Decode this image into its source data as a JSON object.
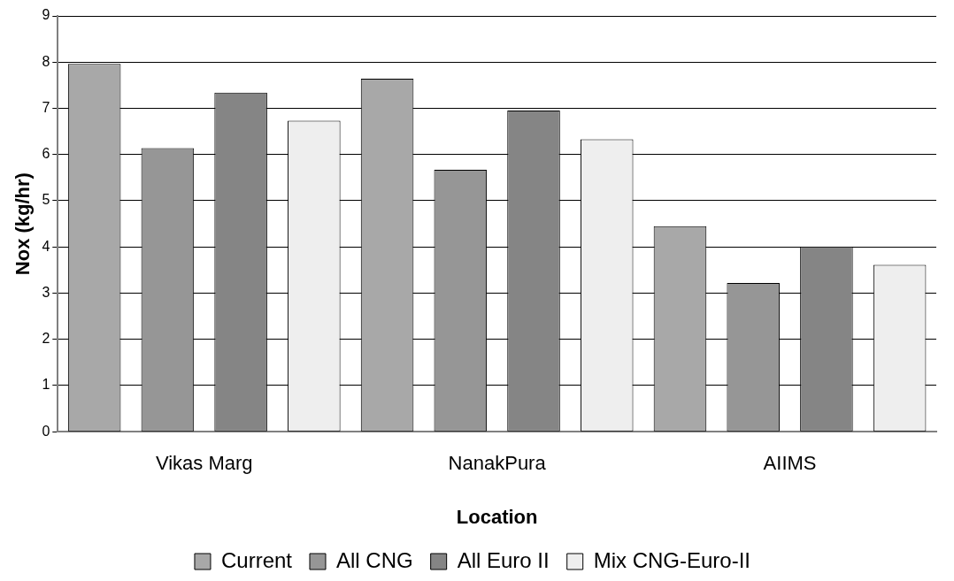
{
  "chart_data": {
    "type": "bar",
    "xlabel": "Location",
    "ylabel": "Nox (kg/hr)",
    "categories": [
      "Vikas Marg",
      "NanakPura",
      "AIIMS"
    ],
    "series": [
      {
        "name": "Current",
        "color": "#a8a8a8",
        "values": [
          7.96,
          7.64,
          4.45
        ]
      },
      {
        "name": "All CNG",
        "color": "#969696",
        "values": [
          6.14,
          5.67,
          3.22
        ]
      },
      {
        "name": "All Euro II",
        "color": "#858585",
        "values": [
          7.34,
          6.95,
          4.01
        ]
      },
      {
        "name": "Mix CNG-Euro-II",
        "color": "#eeeeee",
        "values": [
          6.73,
          6.33,
          3.61
        ]
      }
    ],
    "ylim": [
      0,
      9
    ],
    "yticks": [
      0,
      1,
      2,
      3,
      4,
      5,
      6,
      7,
      8,
      9
    ],
    "grid": "y",
    "legend": "bottom"
  }
}
